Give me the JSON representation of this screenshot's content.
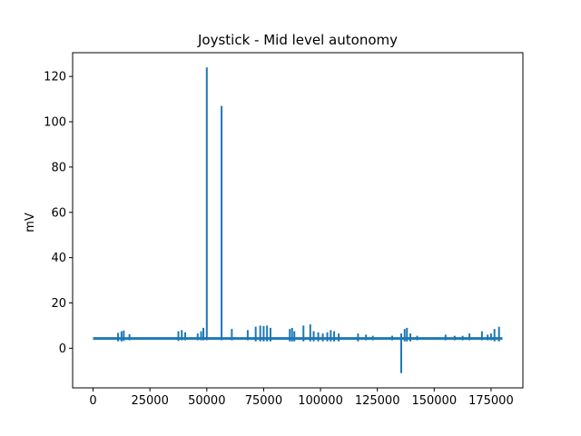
{
  "chart_data": {
    "type": "line",
    "title": "Joystick - Mid level autonomy",
    "xlabel": "",
    "ylabel": "mV",
    "xlim": [
      -9000,
      189000
    ],
    "ylim": [
      -17.5,
      130.5
    ],
    "xticks": [
      0,
      25000,
      50000,
      75000,
      100000,
      125000,
      150000,
      175000
    ],
    "xtick_labels": [
      "0",
      "25000",
      "50000",
      "75000",
      "100000",
      "125000",
      "150000",
      "175000"
    ],
    "yticks": [
      0,
      20,
      40,
      60,
      80,
      100,
      120
    ],
    "ytick_labels": [
      "0",
      "20",
      "40",
      "60",
      "80",
      "100",
      "120"
    ],
    "grid": false,
    "series": [
      {
        "color": "#1f77b4",
        "baseline": 4.3,
        "x_range": [
          0,
          180000
        ],
        "spikes": [
          {
            "x": 11000,
            "y": 6.8,
            "low": 3.0
          },
          {
            "x": 12500,
            "y": 7.5,
            "low": 3.0
          },
          {
            "x": 13500,
            "y": 7.8,
            "low": 3.2
          },
          {
            "x": 16000,
            "y": 6.2,
            "low": 3.5
          },
          {
            "x": 37500,
            "y": 7.5,
            "low": 3.2
          },
          {
            "x": 39000,
            "y": 8.0,
            "low": 3.5
          },
          {
            "x": 40500,
            "y": 7.0,
            "low": 3.5
          },
          {
            "x": 46000,
            "y": 6.5,
            "low": 3.5
          },
          {
            "x": 47500,
            "y": 7.5,
            "low": 3.5
          },
          {
            "x": 48500,
            "y": 9.0,
            "low": 3.5
          },
          {
            "x": 50000,
            "y": 124.0,
            "low": 3.5
          },
          {
            "x": 56500,
            "y": 107.0,
            "low": 3.5
          },
          {
            "x": 61000,
            "y": 8.5,
            "low": 3.5
          },
          {
            "x": 68000,
            "y": 8.0,
            "low": 3.5
          },
          {
            "x": 71500,
            "y": 9.5,
            "low": 3.0
          },
          {
            "x": 73500,
            "y": 10.0,
            "low": 3.0
          },
          {
            "x": 75000,
            "y": 9.8,
            "low": 3.0
          },
          {
            "x": 76500,
            "y": 10.0,
            "low": 3.0
          },
          {
            "x": 78000,
            "y": 9.0,
            "low": 3.0
          },
          {
            "x": 86500,
            "y": 8.5,
            "low": 3.0
          },
          {
            "x": 87500,
            "y": 9.0,
            "low": 3.0
          },
          {
            "x": 88500,
            "y": 7.5,
            "low": 3.0
          },
          {
            "x": 92500,
            "y": 10.0,
            "low": 3.0
          },
          {
            "x": 95500,
            "y": 10.5,
            "low": 3.0
          },
          {
            "x": 97000,
            "y": 7.5,
            "low": 3.0
          },
          {
            "x": 99000,
            "y": 7.0,
            "low": 3.0
          },
          {
            "x": 101000,
            "y": 6.5,
            "low": 3.0
          },
          {
            "x": 103000,
            "y": 7.0,
            "low": 3.0
          },
          {
            "x": 104500,
            "y": 8.0,
            "low": 3.0
          },
          {
            "x": 106000,
            "y": 7.5,
            "low": 3.0
          },
          {
            "x": 108000,
            "y": 6.5,
            "low": 3.0
          },
          {
            "x": 116500,
            "y": 6.5,
            "low": 3.0
          },
          {
            "x": 120000,
            "y": 6.0,
            "low": 3.5
          },
          {
            "x": 123000,
            "y": 5.5,
            "low": 3.5
          },
          {
            "x": 131500,
            "y": 5.5,
            "low": 3.5
          },
          {
            "x": 135500,
            "y": 6.5,
            "low": -11.0
          },
          {
            "x": 137000,
            "y": 8.5,
            "low": 3.0
          },
          {
            "x": 138000,
            "y": 9.0,
            "low": 3.0
          },
          {
            "x": 139500,
            "y": 6.5,
            "low": 3.0
          },
          {
            "x": 142500,
            "y": 5.5,
            "low": 3.5
          },
          {
            "x": 155000,
            "y": 6.0,
            "low": 3.5
          },
          {
            "x": 159000,
            "y": 5.5,
            "low": 3.5
          },
          {
            "x": 162500,
            "y": 5.5,
            "low": 3.5
          },
          {
            "x": 165500,
            "y": 6.5,
            "low": 3.5
          },
          {
            "x": 171000,
            "y": 7.5,
            "low": 3.5
          },
          {
            "x": 173500,
            "y": 6.0,
            "low": 3.5
          },
          {
            "x": 175000,
            "y": 6.5,
            "low": 3.5
          },
          {
            "x": 176500,
            "y": 8.5,
            "low": 3.0
          },
          {
            "x": 178500,
            "y": 9.5,
            "low": 3.0
          }
        ]
      }
    ]
  }
}
